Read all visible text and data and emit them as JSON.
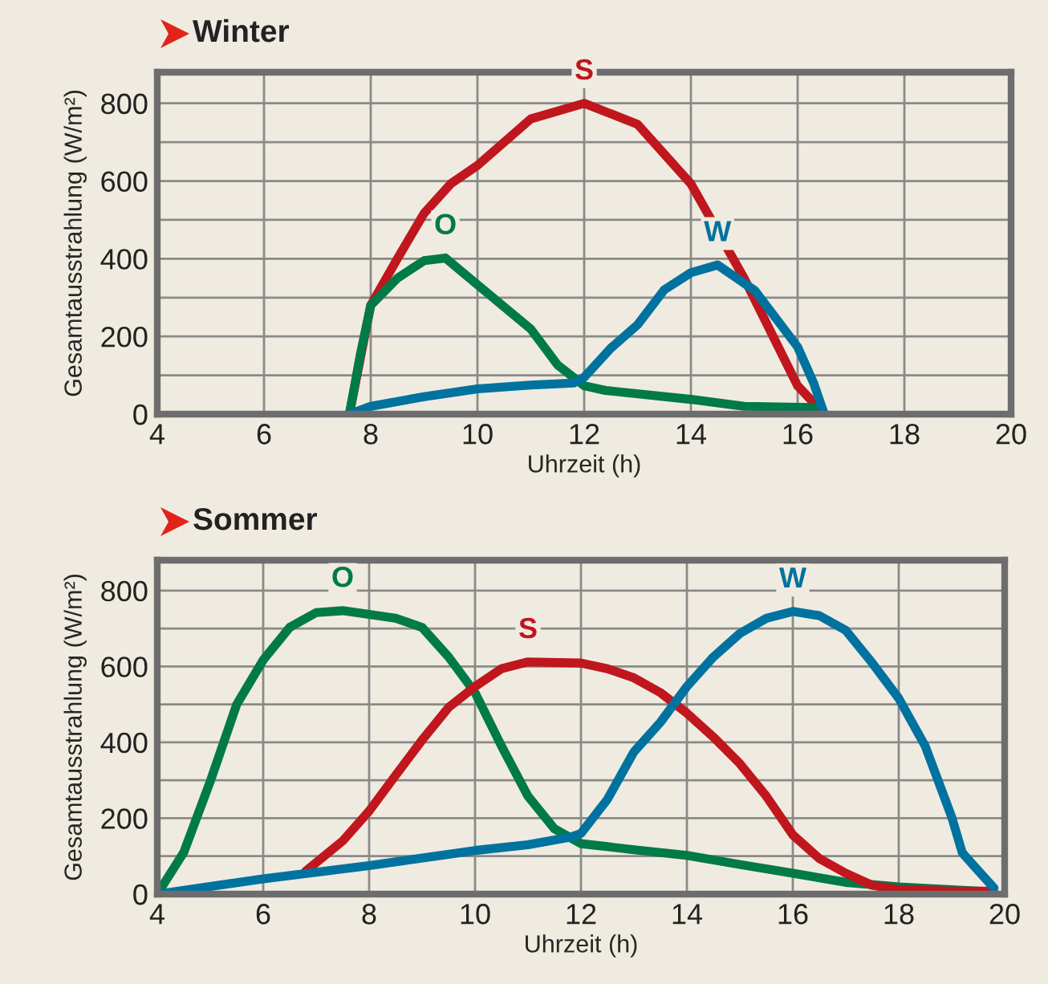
{
  "chart_data": [
    {
      "type": "line",
      "title": "Winter",
      "xlabel": "Uhrzeit (h)",
      "ylabel": "Gesamtausstrahlung (W/m²)",
      "xlim": [
        4,
        20
      ],
      "ylim": [
        0,
        880
      ],
      "xticks": [
        4,
        6,
        8,
        10,
        12,
        14,
        16,
        18,
        20
      ],
      "yticks": [
        0,
        {
          "value": 100,
          "label": null
        },
        200,
        {
          "value": 300,
          "label": null
        },
        400,
        {
          "value": 500,
          "label": null
        },
        600,
        {
          "value": 700,
          "label": null
        },
        800
      ],
      "grid": true,
      "legend": false,
      "series": [
        {
          "name": "S",
          "color": "#c0161d",
          "x": [
            7.6,
            8,
            8.5,
            9,
            9.5,
            10,
            11,
            12,
            13,
            14,
            15,
            16,
            16.5
          ],
          "values": [
            0,
            280,
            400,
            517,
            593,
            640,
            760,
            800,
            746,
            593,
            349,
            73,
            0
          ]
        },
        {
          "name": "O",
          "color": "#007a48",
          "x": [
            7.6,
            7.8,
            8,
            8.5,
            9,
            9.4,
            10,
            11,
            11.5,
            12,
            12.4,
            14,
            15,
            16.3
          ],
          "values": [
            0,
            150,
            280,
            350,
            395,
            402,
            333,
            219,
            127,
            73,
            61,
            38,
            20,
            17
          ]
        },
        {
          "name": "W",
          "color": "#0072a0",
          "x": [
            7.6,
            8,
            9,
            10,
            11,
            11.8,
            12,
            12.5,
            13,
            13.5,
            14,
            14.5,
            15.2,
            16,
            16.3,
            16.5
          ],
          "values": [
            0,
            20,
            45,
            65,
            75,
            80,
            95,
            170,
            230,
            320,
            364,
            384,
            318,
            173,
            80,
            0
          ]
        }
      ]
    },
    {
      "type": "line",
      "title": "Sommer",
      "xlabel": "Uhrzeit (h)",
      "ylabel": "Gesamtausstrahlung (W/m²)",
      "xlim": [
        4,
        20
      ],
      "ylim": [
        0,
        880
      ],
      "xticks": [
        4,
        6,
        8,
        10,
        12,
        14,
        16,
        18,
        20
      ],
      "yticks": [
        0,
        {
          "value": 100,
          "label": null
        },
        200,
        {
          "value": 300,
          "label": null
        },
        400,
        {
          "value": 500,
          "label": null
        },
        600,
        {
          "value": 700,
          "label": null
        },
        800
      ],
      "grid": true,
      "legend": false,
      "series": [
        {
          "name": "O",
          "color": "#007a48",
          "x": [
            4,
            4.5,
            5,
            5.5,
            6,
            6.5,
            7,
            7.5,
            8,
            8.5,
            9,
            9.5,
            10,
            10.5,
            11,
            11.5,
            12,
            13,
            14,
            15,
            16,
            17,
            18,
            19.5
          ],
          "values": [
            0,
            110,
            297,
            500,
            617,
            703,
            742,
            747,
            737,
            727,
            703,
            625,
            531,
            390,
            258,
            172,
            133,
            117,
            102,
            78,
            55,
            31,
            19,
            8
          ]
        },
        {
          "name": "S",
          "color": "#c0161d",
          "x": [
            6.8,
            7.5,
            8,
            8.5,
            9,
            9.5,
            10,
            10.5,
            11,
            12,
            12.5,
            13,
            13.5,
            14,
            14.5,
            15,
            15.5,
            16,
            16.5,
            17,
            17.5,
            18,
            19,
            19.7
          ],
          "values": [
            60,
            140,
            219,
            313,
            406,
            492,
            547,
            594,
            612,
            609,
            594,
            570,
            531,
            477,
            414,
            344,
            258,
            156,
            94,
            55,
            23,
            12,
            8,
            8
          ]
        },
        {
          "name": "W",
          "color": "#0072a0",
          "x": [
            4,
            6,
            8,
            10,
            11,
            11.8,
            12,
            12.5,
            13,
            13.5,
            14,
            14.5,
            15,
            15.5,
            16,
            16.5,
            17,
            17.5,
            18,
            18.5,
            19,
            19.2,
            19.5,
            19.8
          ],
          "values": [
            0,
            40,
            75,
            115,
            130,
            150,
            160,
            250,
            375,
            453,
            547,
            625,
            687,
            727,
            745,
            734,
            695,
            609,
            516,
            390,
            203,
            109,
            62,
            16
          ]
        }
      ]
    }
  ]
}
